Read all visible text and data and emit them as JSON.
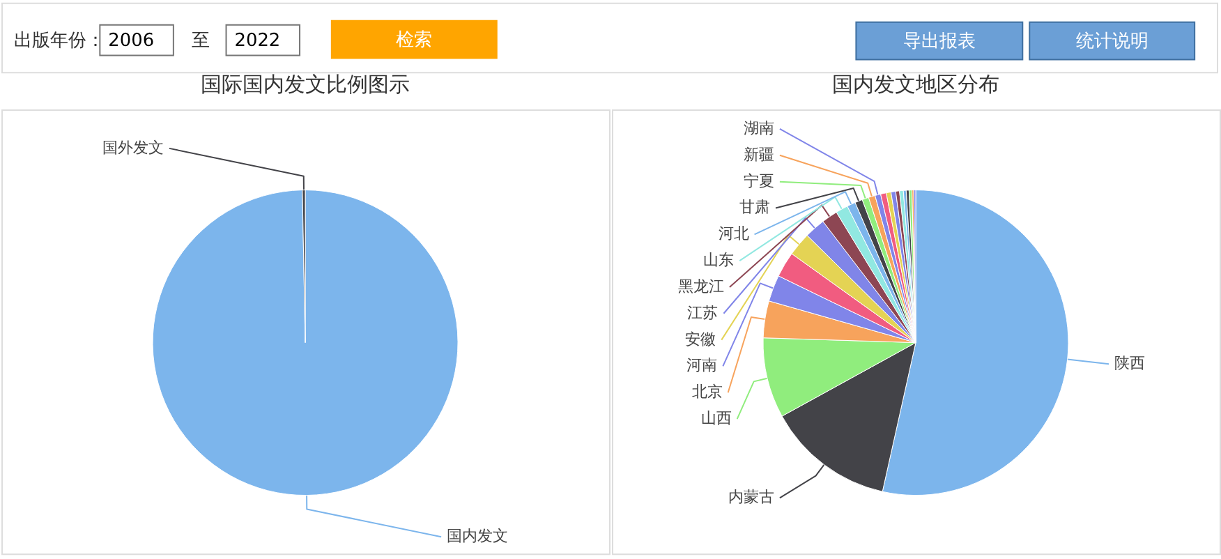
{
  "chart_data": [
    {
      "type": "other",
      "annotations": [
        "出版年份：",
        "2006",
        "至",
        "2022",
        "检索",
        "导出报表",
        "统计说明"
      ]
    },
    {
      "type": "pie",
      "title": "国际国内发文比例图示",
      "categories": [
        "国内发文",
        "国外发文"
      ],
      "values": [
        99.7,
        0.3
      ],
      "colors": [
        "#7cb5ec",
        "#434348"
      ]
    },
    {
      "type": "pie",
      "title": "国内发文地区分布",
      "categories": [
        "陕西",
        "内蒙古",
        "山西",
        "北京",
        "河南",
        null,
        "安徽",
        "江苏",
        "黑龙江",
        "山东",
        "河北",
        "甘肃",
        "宁夏",
        "新疆",
        "湖南",
        null,
        null,
        null,
        null,
        null,
        null,
        null,
        null,
        null,
        null
      ],
      "values": [
        53.5,
        13.5,
        8.5,
        3.9,
        2.8,
        2.7,
        2.5,
        2.2,
        1.7,
        1.3,
        0.9,
        0.8,
        0.7,
        0.7,
        0.6,
        0.6,
        0.5,
        0.5,
        0.4,
        0.4,
        0.3,
        0.3,
        0.3,
        0.2,
        0.2
      ],
      "colors": [
        "#7cb5ec",
        "#434348",
        "#90ed7d",
        "#f7a35c",
        "#8085e9",
        "#f15c80",
        "#e4d354",
        "#8085e8",
        "#8d4653",
        "#91e8e1",
        "#7cb5ec",
        "#434348",
        "#90ed7d",
        "#f7a35c",
        "#8085e9",
        "#f15c80",
        "#e4d354",
        "#8085e8",
        "#8d4653",
        "#91e8e1",
        "#7cb5ec",
        "#434348",
        "#90ed7d",
        "#f7a35c",
        "#8085e9"
      ]
    }
  ]
}
